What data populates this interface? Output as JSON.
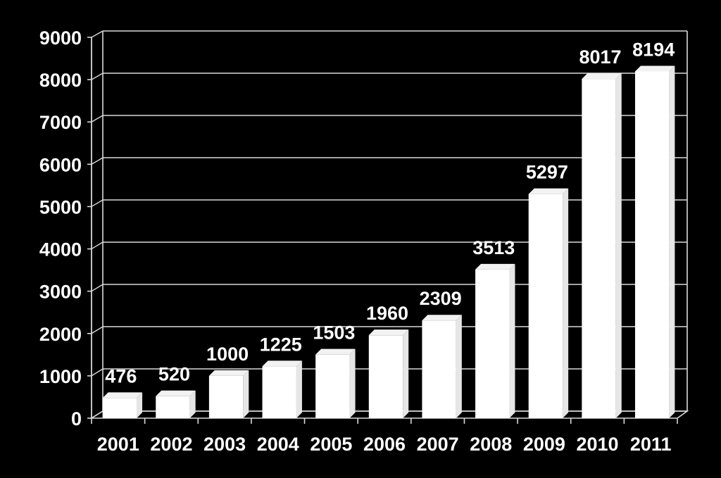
{
  "chart_data": {
    "type": "bar",
    "style": "3d-column",
    "categories": [
      "2001",
      "2002",
      "2003",
      "2004",
      "2005",
      "2006",
      "2007",
      "2008",
      "2009",
      "2010",
      "2011"
    ],
    "values": [
      476,
      520,
      1000,
      1225,
      1503,
      1960,
      2309,
      3513,
      5297,
      8017,
      8194
    ],
    "value_labels": [
      "476",
      "520",
      "1000",
      "1225",
      "1503",
      "1960",
      "2309",
      "3513",
      "5297",
      "8017",
      "8194"
    ],
    "ylim": [
      0,
      9000
    ],
    "yticks": [
      0,
      1000,
      2000,
      3000,
      4000,
      5000,
      6000,
      7000,
      8000,
      9000
    ],
    "ytick_labels": [
      "0",
      "1000",
      "2000",
      "3000",
      "4000",
      "5000",
      "6000",
      "7000",
      "8000",
      "9000"
    ],
    "title": "",
    "xlabel": "",
    "ylabel": "",
    "grid": true,
    "legend": false,
    "colors": {
      "background": "#000000",
      "bar": "#ffffff",
      "grid": "#d9d9d9",
      "text": "#ffffff"
    }
  }
}
